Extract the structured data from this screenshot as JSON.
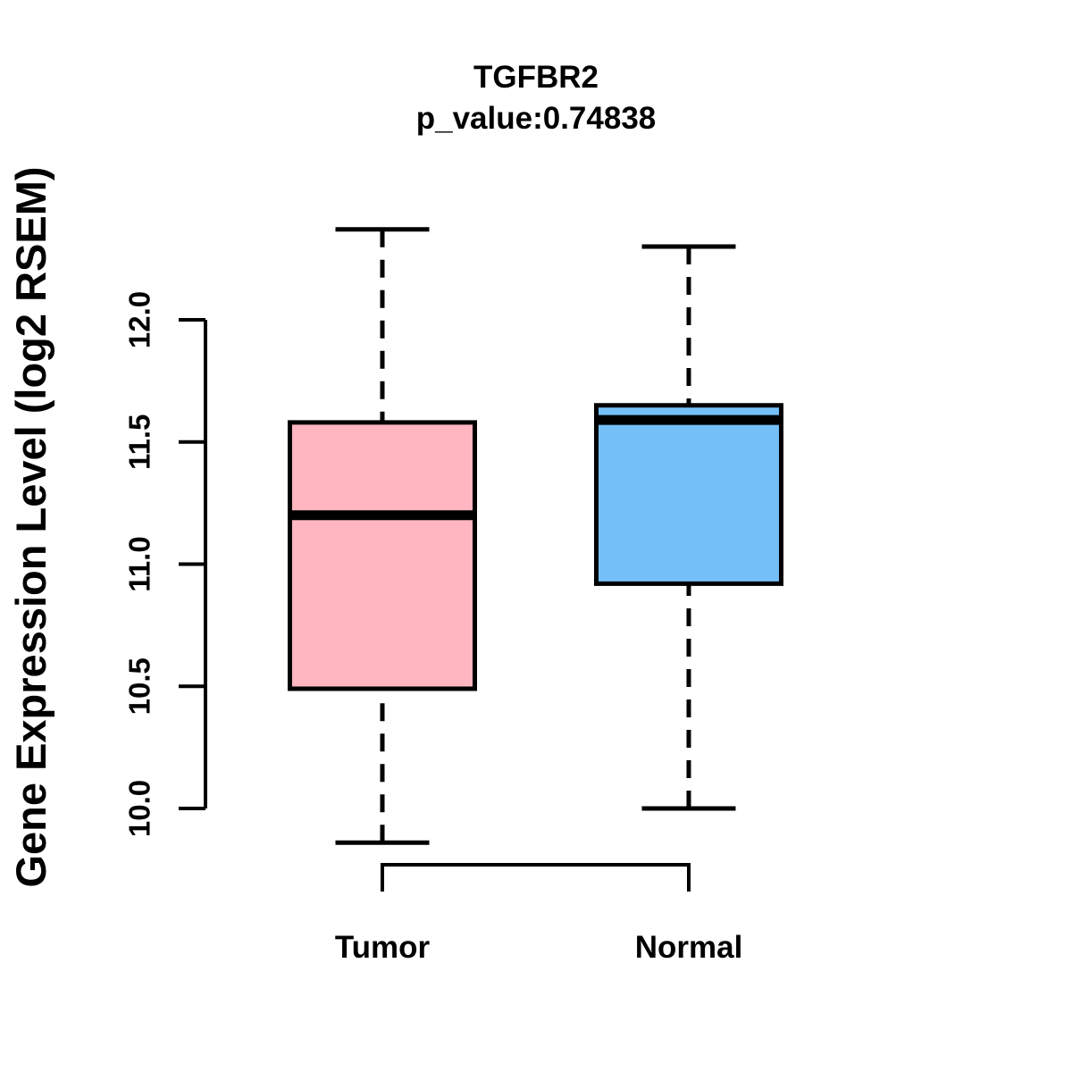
{
  "chart_data": {
    "type": "boxplot",
    "title": "TGFBR2",
    "subtitle": "p_value:0.74838",
    "ylabel": "Gene Expression Level (log2 RSEM)",
    "xlabel": "",
    "categories": [
      "Tumor",
      "Normal"
    ],
    "y_axis": {
      "ticks": [
        "10.0",
        "10.5",
        "11.0",
        "11.5",
        "12.0"
      ],
      "tick_values": [
        10.0,
        10.5,
        11.0,
        11.5,
        12.0
      ],
      "axis_range": [
        10.0,
        12.0
      ]
    },
    "series": [
      {
        "name": "Tumor",
        "color": "#FFB6C1",
        "whisker_low": 9.86,
        "q1": 10.49,
        "median": 11.2,
        "q3": 11.58,
        "whisker_high": 12.37
      },
      {
        "name": "Normal",
        "color": "#74BFF7",
        "whisker_low": 10.0,
        "q1": 10.92,
        "median": 11.59,
        "q3": 11.65,
        "whisker_high": 12.3
      }
    ],
    "style": {
      "box_border_color": "#000000",
      "median_color": "#000000",
      "axis_color": "#000000",
      "whisker_style": "dashed",
      "grid": "off",
      "legend": "none"
    }
  }
}
